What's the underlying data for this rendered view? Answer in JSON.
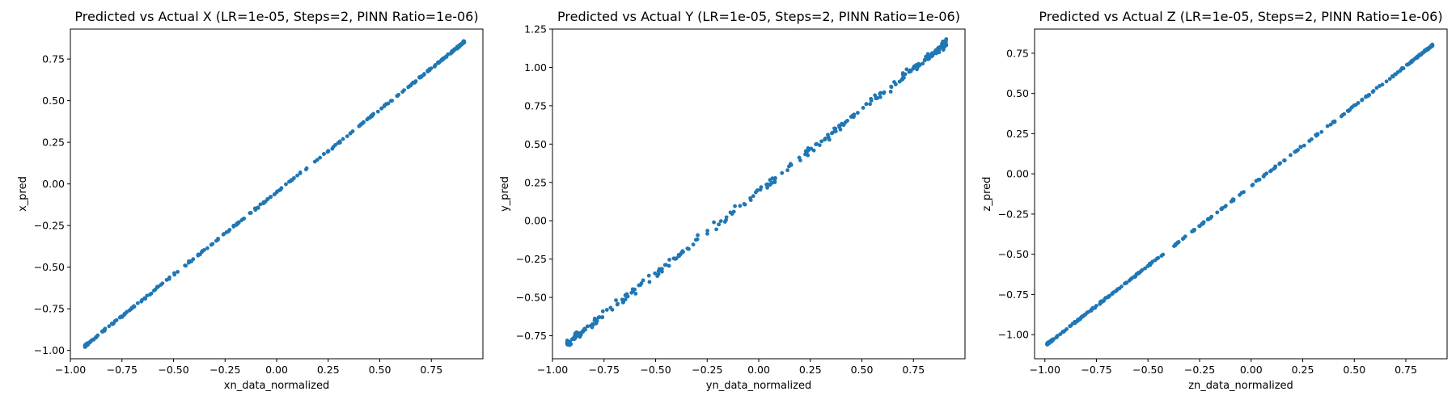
{
  "chart_data": [
    {
      "type": "scatter",
      "title": "Predicted vs Actual X (LR=1e-05, Steps=2, PINN Ratio=1e-06)",
      "xlabel": "xn_data_normalized",
      "ylabel": "x_pred",
      "xlim": [
        -1.0,
        1.0
      ],
      "ylim": [
        -1.05,
        0.93
      ],
      "x_ticks": [
        -1.0,
        -0.75,
        -0.5,
        -0.25,
        0.0,
        0.25,
        0.5,
        0.75
      ],
      "x_tick_labels": [
        "−1.00",
        "−0.75",
        "−0.50",
        "−0.25",
        "0.00",
        "0.25",
        "0.50",
        "0.75"
      ],
      "y_ticks": [
        -1.0,
        -0.75,
        -0.5,
        -0.25,
        0.0,
        0.25,
        0.5,
        0.75
      ],
      "y_tick_labels": [
        "−1.00",
        "−0.75",
        "−0.50",
        "−0.25",
        "0.00",
        "0.25",
        "0.50",
        "0.75"
      ],
      "grid": false,
      "color": "#1f77b4",
      "relation": {
        "x_min": -0.93,
        "x_max": 0.91,
        "slope": 0.993,
        "intercept": -0.05,
        "scatter": 0.006
      }
    },
    {
      "type": "scatter",
      "title": "Predicted vs Actual Y (LR=1e-05, Steps=2, PINN Ratio=1e-06)",
      "xlabel": "yn_data_normalized",
      "ylabel": "y_pred",
      "xlim": [
        -1.0,
        1.0
      ],
      "ylim": [
        -0.9,
        1.25
      ],
      "x_ticks": [
        -1.0,
        -0.75,
        -0.5,
        -0.25,
        0.0,
        0.25,
        0.5,
        0.75
      ],
      "x_tick_labels": [
        "−1.00",
        "−0.75",
        "−0.50",
        "−0.25",
        "0.00",
        "0.25",
        "0.50",
        "0.75"
      ],
      "y_ticks": [
        -0.75,
        -0.5,
        -0.25,
        0.0,
        0.25,
        0.5,
        0.75,
        1.0,
        1.25
      ],
      "y_tick_labels": [
        "−0.75",
        "−0.50",
        "−0.25",
        "0.00",
        "0.25",
        "0.50",
        "0.75",
        "1.00",
        "1.25"
      ],
      "grid": false,
      "color": "#1f77b4",
      "relation": {
        "x_min": -0.93,
        "x_max": 0.91,
        "slope": 1.07,
        "intercept": 0.19,
        "scatter": 0.025
      }
    },
    {
      "type": "scatter",
      "title": "Predicted vs Actual Z (LR=1e-05, Steps=2, PINN Ratio=1e-06)",
      "xlabel": "zn_data_normalized",
      "ylabel": "z_pred",
      "xlim": [
        -1.05,
        0.95
      ],
      "ylim": [
        -1.15,
        0.9
      ],
      "x_ticks": [
        -1.0,
        -0.75,
        -0.5,
        -0.25,
        0.0,
        0.25,
        0.5,
        0.75
      ],
      "x_tick_labels": [
        "−1.00",
        "−0.75",
        "−0.50",
        "−0.25",
        "0.00",
        "0.25",
        "0.50",
        "0.75"
      ],
      "y_ticks": [
        -1.0,
        -0.75,
        -0.5,
        -0.25,
        0.0,
        0.25,
        0.5,
        0.75
      ],
      "y_tick_labels": [
        "−1.00",
        "−0.75",
        "−0.50",
        "−0.25",
        "0.00",
        "0.25",
        "0.50",
        "0.75"
      ],
      "grid": false,
      "color": "#1f77b4",
      "relation": {
        "x_min": -0.99,
        "x_max": 0.88,
        "slope": 0.995,
        "intercept": -0.075,
        "scatter": 0.005
      }
    }
  ]
}
